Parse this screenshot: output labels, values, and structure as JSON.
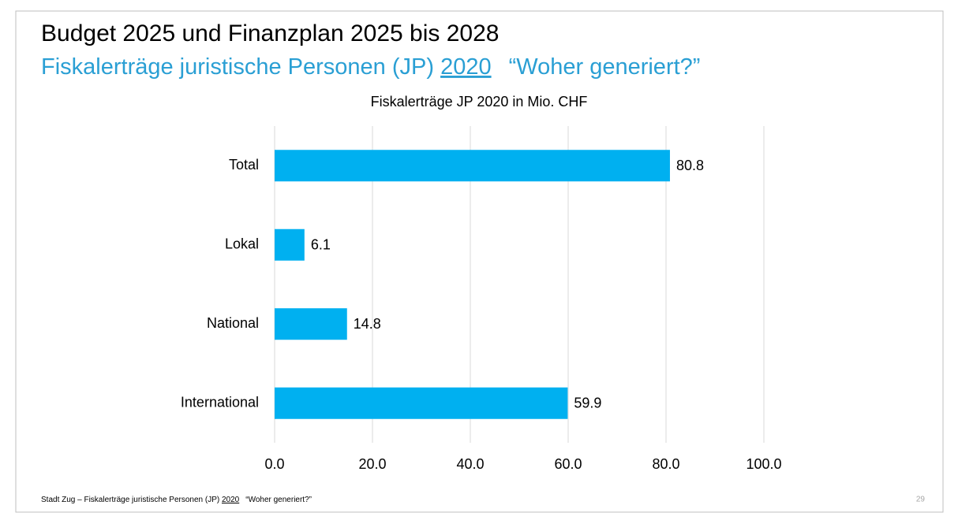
{
  "slide": {
    "title": "Budget 2025 und Finanzplan 2025 bis 2028",
    "subtitle": {
      "before": "Fiskalerträge juristische Personen (JP) ",
      "underlined": "2020",
      "after": "“Woher generiert?”"
    },
    "footer": {
      "before": "Stadt Zug – Fiskalerträge juristische Personen (JP) ",
      "underlined": "2020",
      "after": "“Woher generiert?”"
    },
    "page_number": "29"
  },
  "chart_data": {
    "type": "bar",
    "orientation": "horizontal",
    "title": "Fiskalerträge JP 2020 in Mio. CHF",
    "categories": [
      "Total",
      "Lokal",
      "National",
      "International"
    ],
    "values": [
      80.8,
      6.1,
      14.8,
      59.9
    ],
    "color": "#00b0f0",
    "xlim": [
      0,
      100
    ],
    "xticks": [
      {
        "value": 0,
        "label": "0.0"
      },
      {
        "value": 20,
        "label": "20.0"
      },
      {
        "value": 40,
        "label": "40.0"
      },
      {
        "value": 60,
        "label": "60.0"
      },
      {
        "value": 80,
        "label": "80.0"
      },
      {
        "value": 100,
        "label": "100.0"
      }
    ],
    "grid": true
  }
}
